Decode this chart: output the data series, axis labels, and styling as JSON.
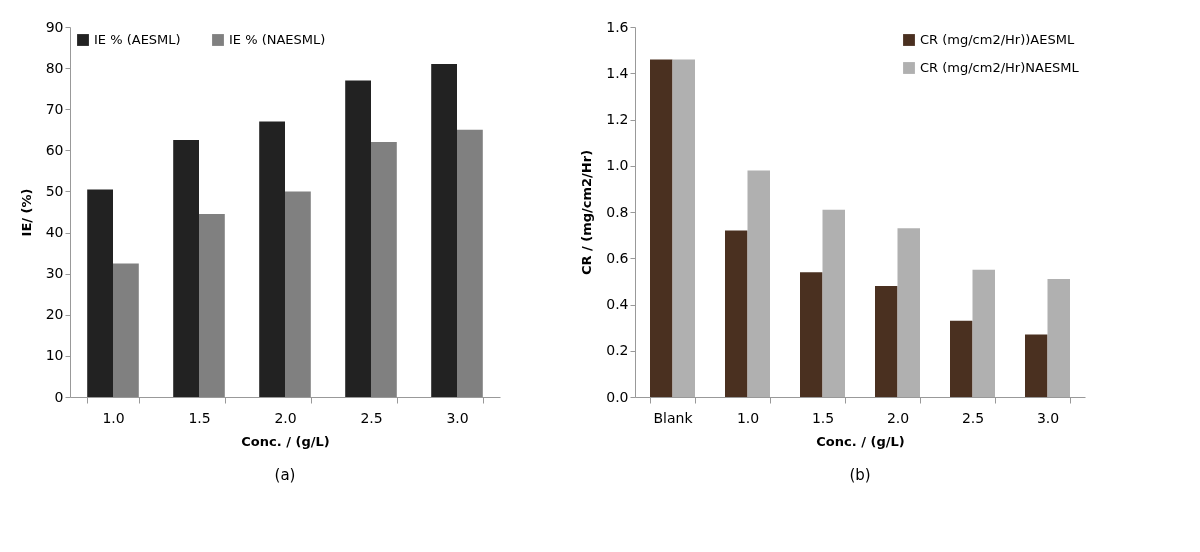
{
  "chart_data": [
    {
      "type": "bar",
      "categories": [
        "1.0",
        "1.5",
        "2.0",
        "2.5",
        "3.0"
      ],
      "xlabel": "Conc. / (g/L)",
      "ylabel": "IE/ (%)",
      "series": [
        {
          "name": "IE % (AESML)",
          "color": "#222222",
          "values": [
            50.5,
            62.5,
            67,
            77,
            81
          ]
        },
        {
          "name": "IE % (NAESML)",
          "color": "#808080",
          "values": [
            32.5,
            44.5,
            50,
            62,
            65
          ]
        }
      ],
      "ylim": [
        0,
        90
      ],
      "yticks": [
        0,
        10,
        20,
        30,
        40,
        50,
        60,
        70,
        80,
        90
      ],
      "legend": "top left",
      "annotations": [
        "(a)"
      ]
    },
    {
      "type": "bar",
      "categories": [
        "Blank",
        "1.0",
        "1.5",
        "2.0",
        "2.5",
        "3.0"
      ],
      "xlabel": "Conc. / (g/L)",
      "ylabel": "CR  / (mg/cm2/Hr)",
      "series": [
        {
          "name": "CR (mg/cm2/Hr))AESML",
          "color": "#4a3020",
          "values": [
            1.46,
            0.72,
            0.54,
            0.48,
            0.33,
            0.27
          ]
        },
        {
          "name": "CR (mg/cm2/Hr)NAESML",
          "color": "#b0b0b0",
          "values": [
            1.46,
            0.98,
            0.81,
            0.73,
            0.55,
            0.51
          ]
        }
      ],
      "ylim": [
        0,
        1.6
      ],
      "yticks": [
        {
          "value": 0,
          "label": "0.0"
        },
        {
          "value": 0.2,
          "label": "0.2"
        },
        {
          "value": 0.4,
          "label": "0.4"
        },
        {
          "value": 0.6,
          "label": "0.6"
        },
        {
          "value": 0.8,
          "label": "0.8"
        },
        {
          "value": 1,
          "label": "1.0"
        },
        {
          "value": 1.2,
          "label": "1.2"
        },
        {
          "value": 1.4,
          "label": "1.4"
        },
        {
          "value": 1.6,
          "label": "1.6"
        }
      ],
      "legend": "top right",
      "annotations": [
        "(b)"
      ]
    }
  ]
}
